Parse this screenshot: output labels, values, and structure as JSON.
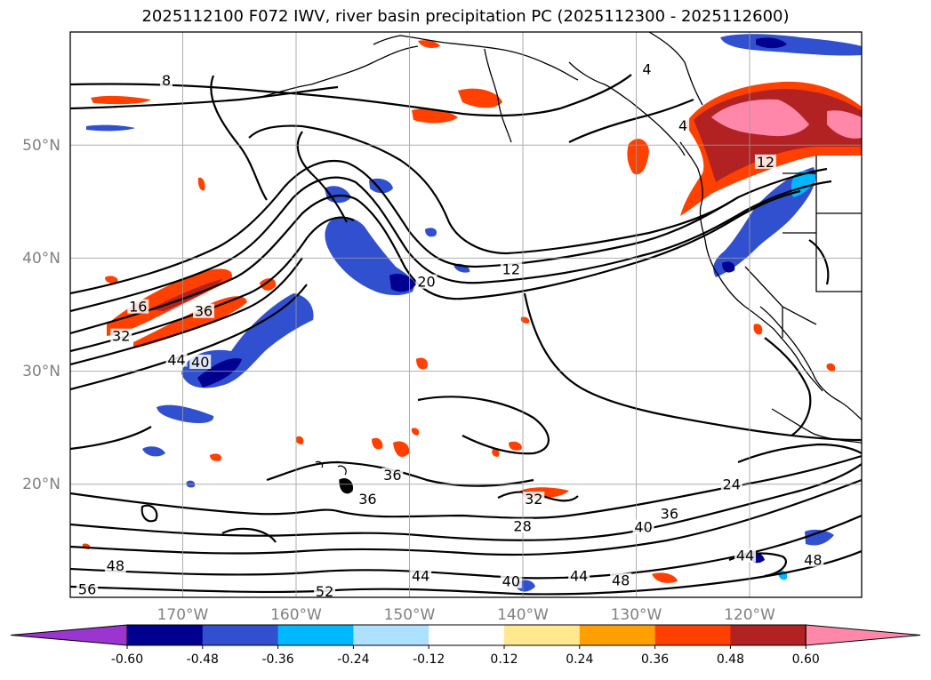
{
  "title": "2025112100 F072 IWV, river basin precipitation PC (2025112300 - 2025112600)",
  "lat_labels": [
    "50°N",
    "40°N",
    "30°N",
    "20°N"
  ],
  "lon_labels": [
    "170°W",
    "160°W",
    "150°W",
    "140°W",
    "130°W",
    "120°W"
  ],
  "contour_labels": [
    {
      "text": "8",
      "lon": -171.5,
      "lat": 55.5
    },
    {
      "text": "4",
      "lon": -129,
      "lat": 56.5
    },
    {
      "text": "4",
      "lon": -125.8,
      "lat": 51.5
    },
    {
      "text": "12",
      "lon": -118.5,
      "lat": 48.3
    },
    {
      "text": "12",
      "lon": -141,
      "lat": 38.8
    },
    {
      "text": "20",
      "lon": -148.5,
      "lat": 37.7
    },
    {
      "text": "16",
      "lon": -174,
      "lat": 35.5
    },
    {
      "text": "36",
      "lon": -168.2,
      "lat": 35.1
    },
    {
      "text": "32",
      "lon": -175.5,
      "lat": 32.9
    },
    {
      "text": "44",
      "lon": -170.6,
      "lat": 30.8
    },
    {
      "text": "40",
      "lon": -168.5,
      "lat": 30.6
    },
    {
      "text": "36",
      "lon": -151.5,
      "lat": 20.6
    },
    {
      "text": "36",
      "lon": -153.7,
      "lat": 18.5
    },
    {
      "text": "32",
      "lon": -139,
      "lat": 18.5
    },
    {
      "text": "24",
      "lon": -121.5,
      "lat": 19.8
    },
    {
      "text": "28",
      "lon": -140,
      "lat": 16.1
    },
    {
      "text": "36",
      "lon": -127,
      "lat": 17.2
    },
    {
      "text": "40",
      "lon": -129.3,
      "lat": 16
    },
    {
      "text": "44",
      "lon": -120.3,
      "lat": 13.5
    },
    {
      "text": "48",
      "lon": -114.3,
      "lat": 13.1
    },
    {
      "text": "48",
      "lon": -176,
      "lat": 12.6
    },
    {
      "text": "44",
      "lon": -149,
      "lat": 11.7
    },
    {
      "text": "44",
      "lon": -135,
      "lat": 11.7
    },
    {
      "text": "48",
      "lon": -131.3,
      "lat": 11.3
    },
    {
      "text": "40",
      "lon": -141,
      "lat": 11.2
    },
    {
      "text": "56",
      "lon": -178.5,
      "lat": 10.5
    },
    {
      "text": "52",
      "lon": -157.5,
      "lat": 10.3
    }
  ],
  "colorbar": {
    "ticks": [
      "-0.60",
      "-0.48",
      "-0.36",
      "-0.24",
      "-0.12",
      "0.12",
      "0.24",
      "0.36",
      "0.48",
      "0.60"
    ],
    "under_color": "#9a36cf",
    "over_color": "#ff88aa",
    "colors": [
      "#000090",
      "#3050d0",
      "#00b8ff",
      "#aee0ff",
      "#ffffff",
      "#ffe890",
      "#ffa000",
      "#ff4000",
      "#b22222"
    ]
  }
}
